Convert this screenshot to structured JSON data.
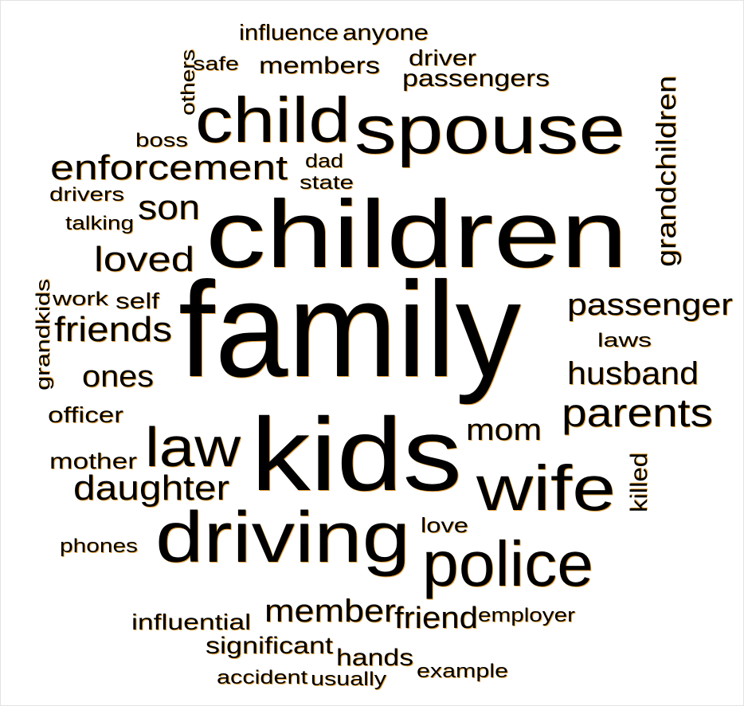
{
  "words": [
    "influence",
    "anyone",
    "others",
    "safe",
    "members",
    "driver",
    "passengers",
    "child",
    "spouse",
    "grandchildren",
    "boss",
    "enforcement",
    "dad",
    "state",
    "drivers",
    "son",
    "talking",
    "children",
    "loved",
    "grandkids",
    "work",
    "self",
    "family",
    "passenger",
    "friends",
    "laws",
    "ones",
    "husband",
    "officer",
    "parents",
    "mom",
    "law",
    "kids",
    "mother",
    "wife",
    "daughter",
    "killed",
    "love",
    "phones",
    "driving",
    "police",
    "member",
    "friend",
    "employer",
    "influential",
    "significant",
    "hands",
    "example",
    "accident",
    "usually"
  ]
}
